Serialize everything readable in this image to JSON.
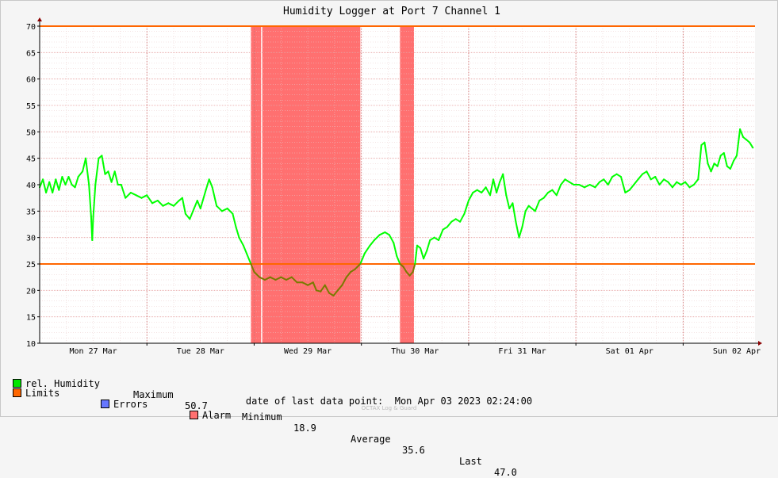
{
  "chart_data": {
    "type": "line",
    "title": "Humidity Logger at Port 7 Channel 1",
    "ylim": [
      10,
      70
    ],
    "yticks": [
      10,
      15,
      20,
      25,
      30,
      35,
      40,
      45,
      50,
      55,
      60,
      65,
      70
    ],
    "x_range_days": [
      0,
      6.67
    ],
    "x_tick_labels": [
      "Mon 27 Mar",
      "Tue 28 Mar",
      "Wed 29 Mar",
      "Thu 30 Mar",
      "Fri 31 Mar",
      "Sat 01 Apr",
      "Sun 02 Apr"
    ],
    "limits": [
      70,
      25
    ],
    "alarm_spans": [
      [
        1.97,
        2.07
      ],
      [
        2.07,
        2.99
      ],
      [
        3.36,
        3.49
      ]
    ],
    "grid": true,
    "series": [
      {
        "name": "rel. Humidity",
        "color": "#00ff00",
        "points": [
          [
            0.0,
            39.5
          ],
          [
            0.03,
            41.0
          ],
          [
            0.06,
            38.5
          ],
          [
            0.09,
            40.5
          ],
          [
            0.12,
            38.5
          ],
          [
            0.15,
            41.0
          ],
          [
            0.18,
            39.0
          ],
          [
            0.21,
            41.5
          ],
          [
            0.24,
            40.0
          ],
          [
            0.27,
            41.5
          ],
          [
            0.3,
            40.0
          ],
          [
            0.33,
            39.5
          ],
          [
            0.36,
            41.5
          ],
          [
            0.4,
            42.5
          ],
          [
            0.43,
            45.0
          ],
          [
            0.46,
            40.0
          ],
          [
            0.48,
            34.0
          ],
          [
            0.49,
            29.5
          ],
          [
            0.5,
            34.0
          ],
          [
            0.52,
            40.0
          ],
          [
            0.55,
            45.0
          ],
          [
            0.58,
            45.5
          ],
          [
            0.61,
            42.0
          ],
          [
            0.64,
            42.5
          ],
          [
            0.67,
            40.5
          ],
          [
            0.7,
            42.5
          ],
          [
            0.73,
            40.0
          ],
          [
            0.76,
            40.0
          ],
          [
            0.8,
            37.5
          ],
          [
            0.85,
            38.5
          ],
          [
            0.9,
            38.0
          ],
          [
            0.95,
            37.5
          ],
          [
            1.0,
            38.0
          ],
          [
            1.05,
            36.5
          ],
          [
            1.1,
            37.0
          ],
          [
            1.15,
            36.0
          ],
          [
            1.2,
            36.5
          ],
          [
            1.25,
            36.0
          ],
          [
            1.3,
            37.0
          ],
          [
            1.33,
            37.5
          ],
          [
            1.36,
            34.5
          ],
          [
            1.4,
            33.5
          ],
          [
            1.44,
            35.5
          ],
          [
            1.47,
            37.0
          ],
          [
            1.5,
            35.5
          ],
          [
            1.55,
            39.0
          ],
          [
            1.58,
            41.0
          ],
          [
            1.61,
            39.5
          ],
          [
            1.65,
            36.0
          ],
          [
            1.7,
            35.0
          ],
          [
            1.75,
            35.5
          ],
          [
            1.8,
            34.5
          ],
          [
            1.83,
            32.0
          ],
          [
            1.86,
            30.0
          ],
          [
            1.9,
            28.5
          ],
          [
            1.93,
            27.0
          ],
          [
            1.97,
            25.0
          ],
          [
            2.0,
            23.5
          ],
          [
            2.05,
            22.5
          ],
          [
            2.1,
            22.0
          ],
          [
            2.15,
            22.5
          ],
          [
            2.2,
            22.0
          ],
          [
            2.25,
            22.5
          ],
          [
            2.3,
            22.0
          ],
          [
            2.35,
            22.5
          ],
          [
            2.4,
            21.5
          ],
          [
            2.45,
            21.5
          ],
          [
            2.5,
            21.0
          ],
          [
            2.55,
            21.5
          ],
          [
            2.58,
            20.0
          ],
          [
            2.62,
            19.8
          ],
          [
            2.66,
            21.0
          ],
          [
            2.7,
            19.5
          ],
          [
            2.74,
            19.0
          ],
          [
            2.78,
            20.0
          ],
          [
            2.82,
            21.0
          ],
          [
            2.86,
            22.5
          ],
          [
            2.9,
            23.5
          ],
          [
            2.94,
            24.0
          ],
          [
            2.99,
            25.0
          ],
          [
            3.03,
            27.0
          ],
          [
            3.08,
            28.5
          ],
          [
            3.12,
            29.5
          ],
          [
            3.17,
            30.5
          ],
          [
            3.22,
            31.0
          ],
          [
            3.26,
            30.5
          ],
          [
            3.3,
            29.0
          ],
          [
            3.33,
            26.5
          ],
          [
            3.36,
            25.0
          ],
          [
            3.39,
            24.5
          ],
          [
            3.42,
            23.5
          ],
          [
            3.45,
            22.8
          ],
          [
            3.48,
            23.5
          ],
          [
            3.5,
            25.0
          ],
          [
            3.52,
            28.5
          ],
          [
            3.55,
            28.0
          ],
          [
            3.58,
            26.0
          ],
          [
            3.61,
            27.5
          ],
          [
            3.64,
            29.5
          ],
          [
            3.68,
            30.0
          ],
          [
            3.72,
            29.5
          ],
          [
            3.76,
            31.5
          ],
          [
            3.8,
            32.0
          ],
          [
            3.84,
            33.0
          ],
          [
            3.88,
            33.5
          ],
          [
            3.92,
            33.0
          ],
          [
            3.96,
            34.5
          ],
          [
            4.0,
            37.0
          ],
          [
            4.04,
            38.5
          ],
          [
            4.08,
            39.0
          ],
          [
            4.12,
            38.5
          ],
          [
            4.16,
            39.5
          ],
          [
            4.2,
            38.0
          ],
          [
            4.23,
            41.0
          ],
          [
            4.26,
            38.5
          ],
          [
            4.29,
            40.5
          ],
          [
            4.32,
            42.0
          ],
          [
            4.35,
            38.0
          ],
          [
            4.38,
            35.5
          ],
          [
            4.41,
            36.5
          ],
          [
            4.44,
            33.0
          ],
          [
            4.47,
            30.0
          ],
          [
            4.5,
            32.0
          ],
          [
            4.53,
            35.0
          ],
          [
            4.56,
            36.0
          ],
          [
            4.59,
            35.5
          ],
          [
            4.62,
            35.0
          ],
          [
            4.66,
            37.0
          ],
          [
            4.7,
            37.5
          ],
          [
            4.74,
            38.5
          ],
          [
            4.78,
            39.0
          ],
          [
            4.82,
            38.0
          ],
          [
            4.86,
            40.0
          ],
          [
            4.9,
            41.0
          ],
          [
            4.94,
            40.5
          ],
          [
            4.98,
            40.0
          ],
          [
            5.03,
            40.0
          ],
          [
            5.08,
            39.5
          ],
          [
            5.13,
            40.0
          ],
          [
            5.18,
            39.5
          ],
          [
            5.22,
            40.5
          ],
          [
            5.26,
            41.0
          ],
          [
            5.3,
            40.0
          ],
          [
            5.34,
            41.5
          ],
          [
            5.38,
            42.0
          ],
          [
            5.42,
            41.5
          ],
          [
            5.46,
            38.5
          ],
          [
            5.5,
            39.0
          ],
          [
            5.54,
            40.0
          ],
          [
            5.58,
            41.0
          ],
          [
            5.62,
            42.0
          ],
          [
            5.66,
            42.5
          ],
          [
            5.7,
            41.0
          ],
          [
            5.74,
            41.5
          ],
          [
            5.78,
            40.0
          ],
          [
            5.82,
            41.0
          ],
          [
            5.86,
            40.5
          ],
          [
            5.9,
            39.5
          ],
          [
            5.94,
            40.5
          ],
          [
            5.98,
            40.0
          ],
          [
            6.02,
            40.5
          ],
          [
            6.06,
            39.5
          ],
          [
            6.1,
            40.0
          ],
          [
            6.14,
            41.0
          ],
          [
            6.17,
            47.5
          ],
          [
            6.2,
            48.0
          ],
          [
            6.23,
            44.0
          ],
          [
            6.26,
            42.5
          ],
          [
            6.29,
            44.0
          ],
          [
            6.32,
            43.5
          ],
          [
            6.35,
            45.5
          ],
          [
            6.38,
            46.0
          ],
          [
            6.41,
            43.5
          ],
          [
            6.44,
            43.0
          ],
          [
            6.47,
            44.5
          ],
          [
            6.5,
            45.5
          ],
          [
            6.53,
            50.5
          ],
          [
            6.56,
            49.0
          ],
          [
            6.59,
            48.5
          ],
          [
            6.62,
            48.0
          ],
          [
            6.65,
            47.0
          ]
        ]
      }
    ]
  },
  "legend": {
    "humidity": {
      "label": "rel. Humidity",
      "color": "#00e600"
    },
    "stats": {
      "max_label": "Maximum",
      "max_value": "50.7",
      "min_label": "Minimum",
      "min_value": "18.9",
      "avg_label": "Average",
      "avg_value": "35.6",
      "last_label": "Last",
      "last_value": "47.0"
    },
    "limits": {
      "label": "Limits",
      "color": "#ff6600"
    },
    "errors": {
      "label": "Errors",
      "color": "#6677ff"
    },
    "alarm": {
      "label": "Alarm",
      "color": "#ff7070"
    }
  },
  "footer": {
    "date_label": "date of last data point:",
    "date_value": "Mon Apr 03 2023 02:24:00",
    "brand": "OCTAX Log & Guard"
  },
  "colors": {
    "background": "#f5f5f5",
    "plot_background": "#ffffff",
    "grid_major": "#e6a0a0",
    "grid_minor": "#e8c8c8",
    "axis": "#000000",
    "arrow": "#8b0000",
    "line_in_alarm": "#7a7a00"
  }
}
